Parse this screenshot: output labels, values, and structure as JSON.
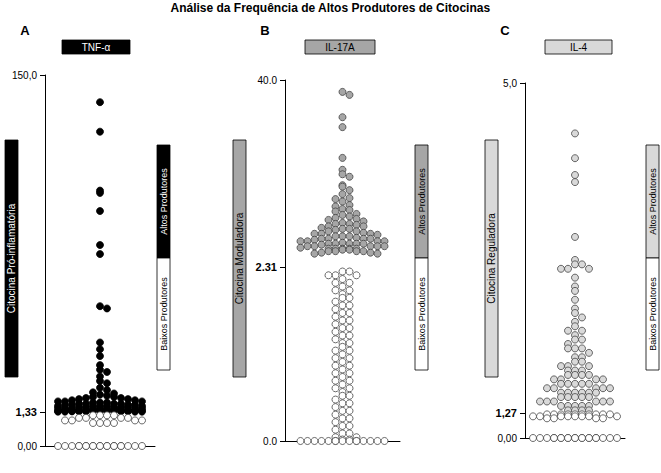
{
  "title": "Análise da Frequência de Altos Produtores de Citocinas",
  "chart_data": [
    {
      "type": "scatter",
      "panel": "A",
      "title": "TNF-α",
      "ylabel": "Citocina Pró-inflamatória",
      "threshold": 1.33,
      "ylim": [
        0,
        150
      ],
      "yticks": [
        {
          "value": 0,
          "label": "0,00"
        },
        {
          "value": 1.33,
          "label": "1,33"
        },
        {
          "value": 150,
          "label": "150,0"
        }
      ],
      "series": [
        {
          "name": "Altos Produtores",
          "color": "#000000",
          "values": [
            138,
            125,
            99,
            98,
            90,
            75,
            71,
            48,
            47,
            32,
            29,
            26,
            22,
            20,
            19,
            17,
            15,
            14,
            12,
            11,
            10,
            9.5,
            9,
            8.5,
            8,
            8,
            7.5,
            7.5,
            7,
            7,
            6.5,
            6.5,
            6,
            6,
            6,
            5.5,
            5.5,
            5.5,
            5,
            5,
            5,
            5,
            4.5,
            4.5,
            4.5,
            4.5,
            4,
            4,
            4,
            4,
            4,
            3.5,
            3.5,
            3.5,
            3.5,
            3.5,
            3,
            3,
            3,
            3,
            3,
            3,
            2.5,
            2.5,
            2.5,
            2.5,
            2.5,
            2.5,
            2,
            2,
            2,
            2,
            2,
            2,
            1.8,
            1.8,
            1.8,
            1.8,
            1.8,
            1.6,
            1.6,
            1.6,
            1.6,
            1.6,
            1.5,
            1.5,
            1.5,
            1.5
          ]
        },
        {
          "name": "Baixos Produtores",
          "color": "#ffffff",
          "values": [
            1.2,
            1.2,
            1.2,
            1.2,
            1.1,
            1.1,
            1.1,
            1.1,
            1.0,
            1.0,
            1.0,
            1.0,
            0.9,
            0.9,
            0.9,
            0.9,
            0,
            0,
            0,
            0,
            0,
            0,
            0,
            0,
            0,
            0,
            0,
            0,
            0,
            0,
            0,
            0,
            0,
            0,
            0,
            0
          ]
        }
      ]
    },
    {
      "type": "scatter",
      "panel": "B",
      "title": "IL-17A",
      "ylabel": "Citocina Moduladora",
      "threshold": 2.31,
      "ylim": [
        0,
        40
      ],
      "yticks": [
        {
          "value": 0,
          "label": "0.0"
        },
        2.31,
        {
          "value": 40,
          "label": "40.0"
        }
      ],
      "series": [
        {
          "name": "Altos Produtores",
          "color": "#a6a6a6",
          "values": [
            37.6,
            37,
            32.5,
            30.5,
            24.3,
            21.9,
            21,
            20.5,
            18.8,
            18.5,
            17.8,
            17,
            16.2,
            16,
            15.5,
            14.8,
            14.5,
            14,
            13.8,
            13.5,
            13,
            12.8,
            12.5,
            12.2,
            12,
            11.8,
            11.5,
            11.2,
            11,
            11,
            10.8,
            10.5,
            10.5,
            10.2,
            10,
            10,
            9.8,
            9.5,
            9.5,
            9.2,
            9,
            9,
            9,
            8.8,
            8.5,
            8.5,
            8.5,
            8.2,
            8,
            8,
            8,
            8,
            7.8,
            7.5,
            7.5,
            7.5,
            7.5,
            7.2,
            7,
            7,
            7,
            7,
            7,
            6.8,
            6.5,
            6.5,
            6.5,
            6.5,
            6.5,
            6.2,
            6,
            6,
            6,
            6,
            6,
            5.8,
            5.8,
            5.5,
            5.5,
            5.5,
            5.5,
            5.2,
            5.2,
            5,
            5
          ]
        },
        {
          "name": "Baixos Produtores",
          "color": "#ffffff",
          "values": [
            2.25,
            2.25,
            2.2,
            2.2,
            2.2,
            2.15,
            2.1,
            2.1,
            2.05,
            2.0,
            2.0,
            1.95,
            1.9,
            1.9,
            1.85,
            1.8,
            1.8,
            1.75,
            1.7,
            1.7,
            1.65,
            1.6,
            1.6,
            1.55,
            1.5,
            1.5,
            1.45,
            1.4,
            1.4,
            1.35,
            1.3,
            1.3,
            1.25,
            1.2,
            1.2,
            1.15,
            1.1,
            1.1,
            1.05,
            1.0,
            1.0,
            0.95,
            0.9,
            0.9,
            0.85,
            0.8,
            0.8,
            0.75,
            0.7,
            0.7,
            0.65,
            0.6,
            0.6,
            0.55,
            0.5,
            0.5,
            0.45,
            0.4,
            0.4,
            0.35,
            0.3,
            0.3,
            0.25,
            0.2,
            0.2,
            0.15,
            0.1,
            0.1,
            0.05,
            0.05,
            0.02,
            0.02,
            0,
            0,
            0,
            0,
            0,
            0,
            0,
            0,
            0,
            0,
            0,
            0,
            0,
            0,
            0
          ]
        }
      ]
    },
    {
      "type": "scatter",
      "panel": "C",
      "title": "IL-4",
      "ylabel": "Citocina Reguladora",
      "threshold": 1.27,
      "ylim": [
        0,
        5
      ],
      "yticks": [
        {
          "value": 0,
          "label": "0,00"
        },
        {
          "value": 1.27,
          "label": "1,27"
        },
        {
          "value": 5,
          "label": "5,0"
        }
      ],
      "series": [
        {
          "name": "Altos Produtores",
          "color": "#d9d9d9",
          "values": [
            4.43,
            4.15,
            3.96,
            3.88,
            3.26,
            3.0,
            2.95,
            2.95,
            2.9,
            2.9,
            2.9,
            2.8,
            2.7,
            2.65,
            2.55,
            2.45,
            2.4,
            2.35,
            2.3,
            2.25,
            2.2,
            2.2,
            2.15,
            2.1,
            2.1,
            2.05,
            2.0,
            2.0,
            2.0,
            1.95,
            1.9,
            1.9,
            1.85,
            1.85,
            1.8,
            1.8,
            1.8,
            1.75,
            1.75,
            1.75,
            1.7,
            1.7,
            1.7,
            1.7,
            1.65,
            1.65,
            1.65,
            1.65,
            1.6,
            1.6,
            1.6,
            1.6,
            1.6,
            1.55,
            1.55,
            1.55,
            1.55,
            1.55,
            1.5,
            1.5,
            1.5,
            1.5,
            1.5,
            1.5,
            1.45,
            1.45,
            1.45,
            1.45,
            1.45,
            1.4,
            1.4,
            1.4,
            1.4,
            1.4,
            1.4,
            1.35,
            1.35,
            1.35,
            1.35,
            1.35,
            1.3,
            1.3,
            1.3,
            1.3
          ]
        },
        {
          "name": "Baixos Produtores",
          "color": "#ffffff",
          "values": [
            1.2,
            1.2,
            1.2,
            1.2,
            1.2,
            1.2,
            1.2,
            1.2,
            1.2,
            1.2,
            1.1,
            1.1,
            1.1,
            1.1,
            1.1,
            1.1,
            1.1,
            1.1,
            1.0,
            1.0,
            1.0,
            1.0,
            0,
            0,
            0,
            0,
            0,
            0,
            0,
            0,
            0,
            0,
            0,
            0,
            0,
            0,
            0,
            0,
            0,
            0,
            0,
            0
          ]
        }
      ]
    }
  ]
}
